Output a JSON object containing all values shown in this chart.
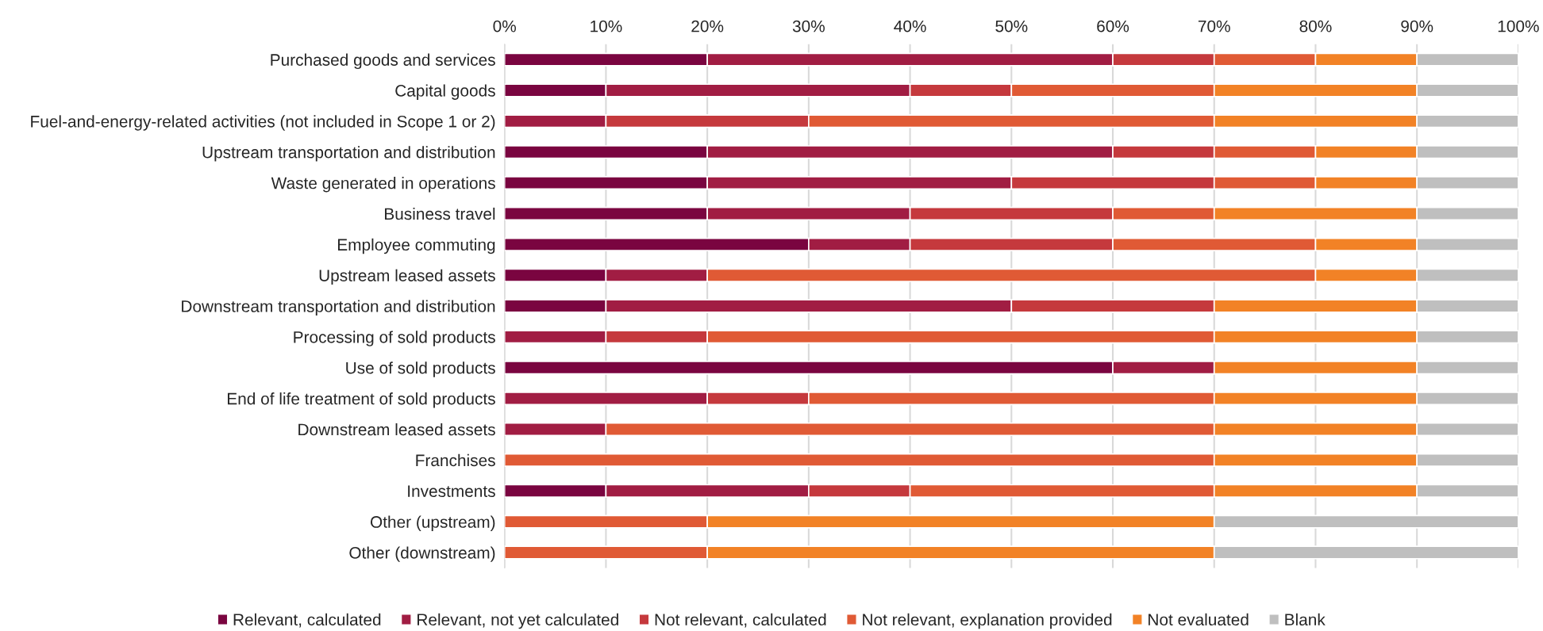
{
  "chart_data": {
    "type": "bar",
    "orientation": "horizontal",
    "stacked": true,
    "categories": [
      "Purchased goods and services",
      "Capital goods",
      "Fuel-and-energy-related activities (not included in Scope 1 or 2)",
      "Upstream transportation and distribution",
      "Waste generated in operations",
      "Business travel",
      "Employee commuting",
      "Upstream leased assets",
      "Downstream transportation and distribution",
      "Processing of sold products",
      "Use of sold products",
      "End of life treatment of sold products",
      "Downstream leased assets",
      "Franchises",
      "Investments",
      "Other (upstream)",
      "Other (downstream)"
    ],
    "series": [
      {
        "name": "Relevant, calculated",
        "color": "#7a0540",
        "values": [
          20,
          10,
          0,
          20,
          20,
          20,
          30,
          10,
          10,
          0,
          60,
          0,
          0,
          0,
          10,
          0,
          0
        ]
      },
      {
        "name": "Relevant, not yet calculated",
        "color": "#a11d43",
        "values": [
          40,
          30,
          10,
          40,
          30,
          20,
          10,
          10,
          40,
          10,
          10,
          20,
          10,
          0,
          20,
          0,
          0
        ]
      },
      {
        "name": "Not relevant, calculated",
        "color": "#c5393d",
        "values": [
          10,
          10,
          20,
          10,
          20,
          20,
          20,
          0,
          20,
          10,
          0,
          10,
          0,
          0,
          10,
          0,
          0
        ]
      },
      {
        "name": "Not relevant, explanation provided",
        "color": "#e05a35",
        "values": [
          10,
          20,
          40,
          10,
          10,
          10,
          20,
          60,
          0,
          50,
          0,
          40,
          60,
          70,
          30,
          20,
          20
        ]
      },
      {
        "name": "Not evaluated",
        "color": "#f28226",
        "values": [
          10,
          20,
          20,
          10,
          10,
          20,
          10,
          10,
          20,
          20,
          20,
          20,
          20,
          20,
          20,
          50,
          50
        ]
      },
      {
        "name": "Blank",
        "color": "#bfbfbf",
        "values": [
          10,
          10,
          10,
          10,
          10,
          10,
          10,
          10,
          10,
          10,
          10,
          10,
          10,
          10,
          10,
          30,
          30
        ]
      }
    ],
    "xlim": [
      0,
      100
    ],
    "xticks": [
      {
        "value": 0,
        "label": "0%"
      },
      {
        "value": 10,
        "label": "10%"
      },
      {
        "value": 20,
        "label": "20%"
      },
      {
        "value": 30,
        "label": "30%"
      },
      {
        "value": 40,
        "label": "40%"
      },
      {
        "value": 50,
        "label": "50%"
      },
      {
        "value": 60,
        "label": "60%"
      },
      {
        "value": 70,
        "label": "70%"
      },
      {
        "value": 80,
        "label": "80%"
      },
      {
        "value": 90,
        "label": "90%"
      },
      {
        "value": 100,
        "label": "100%"
      }
    ],
    "grid": "x",
    "legend": "bottom"
  }
}
